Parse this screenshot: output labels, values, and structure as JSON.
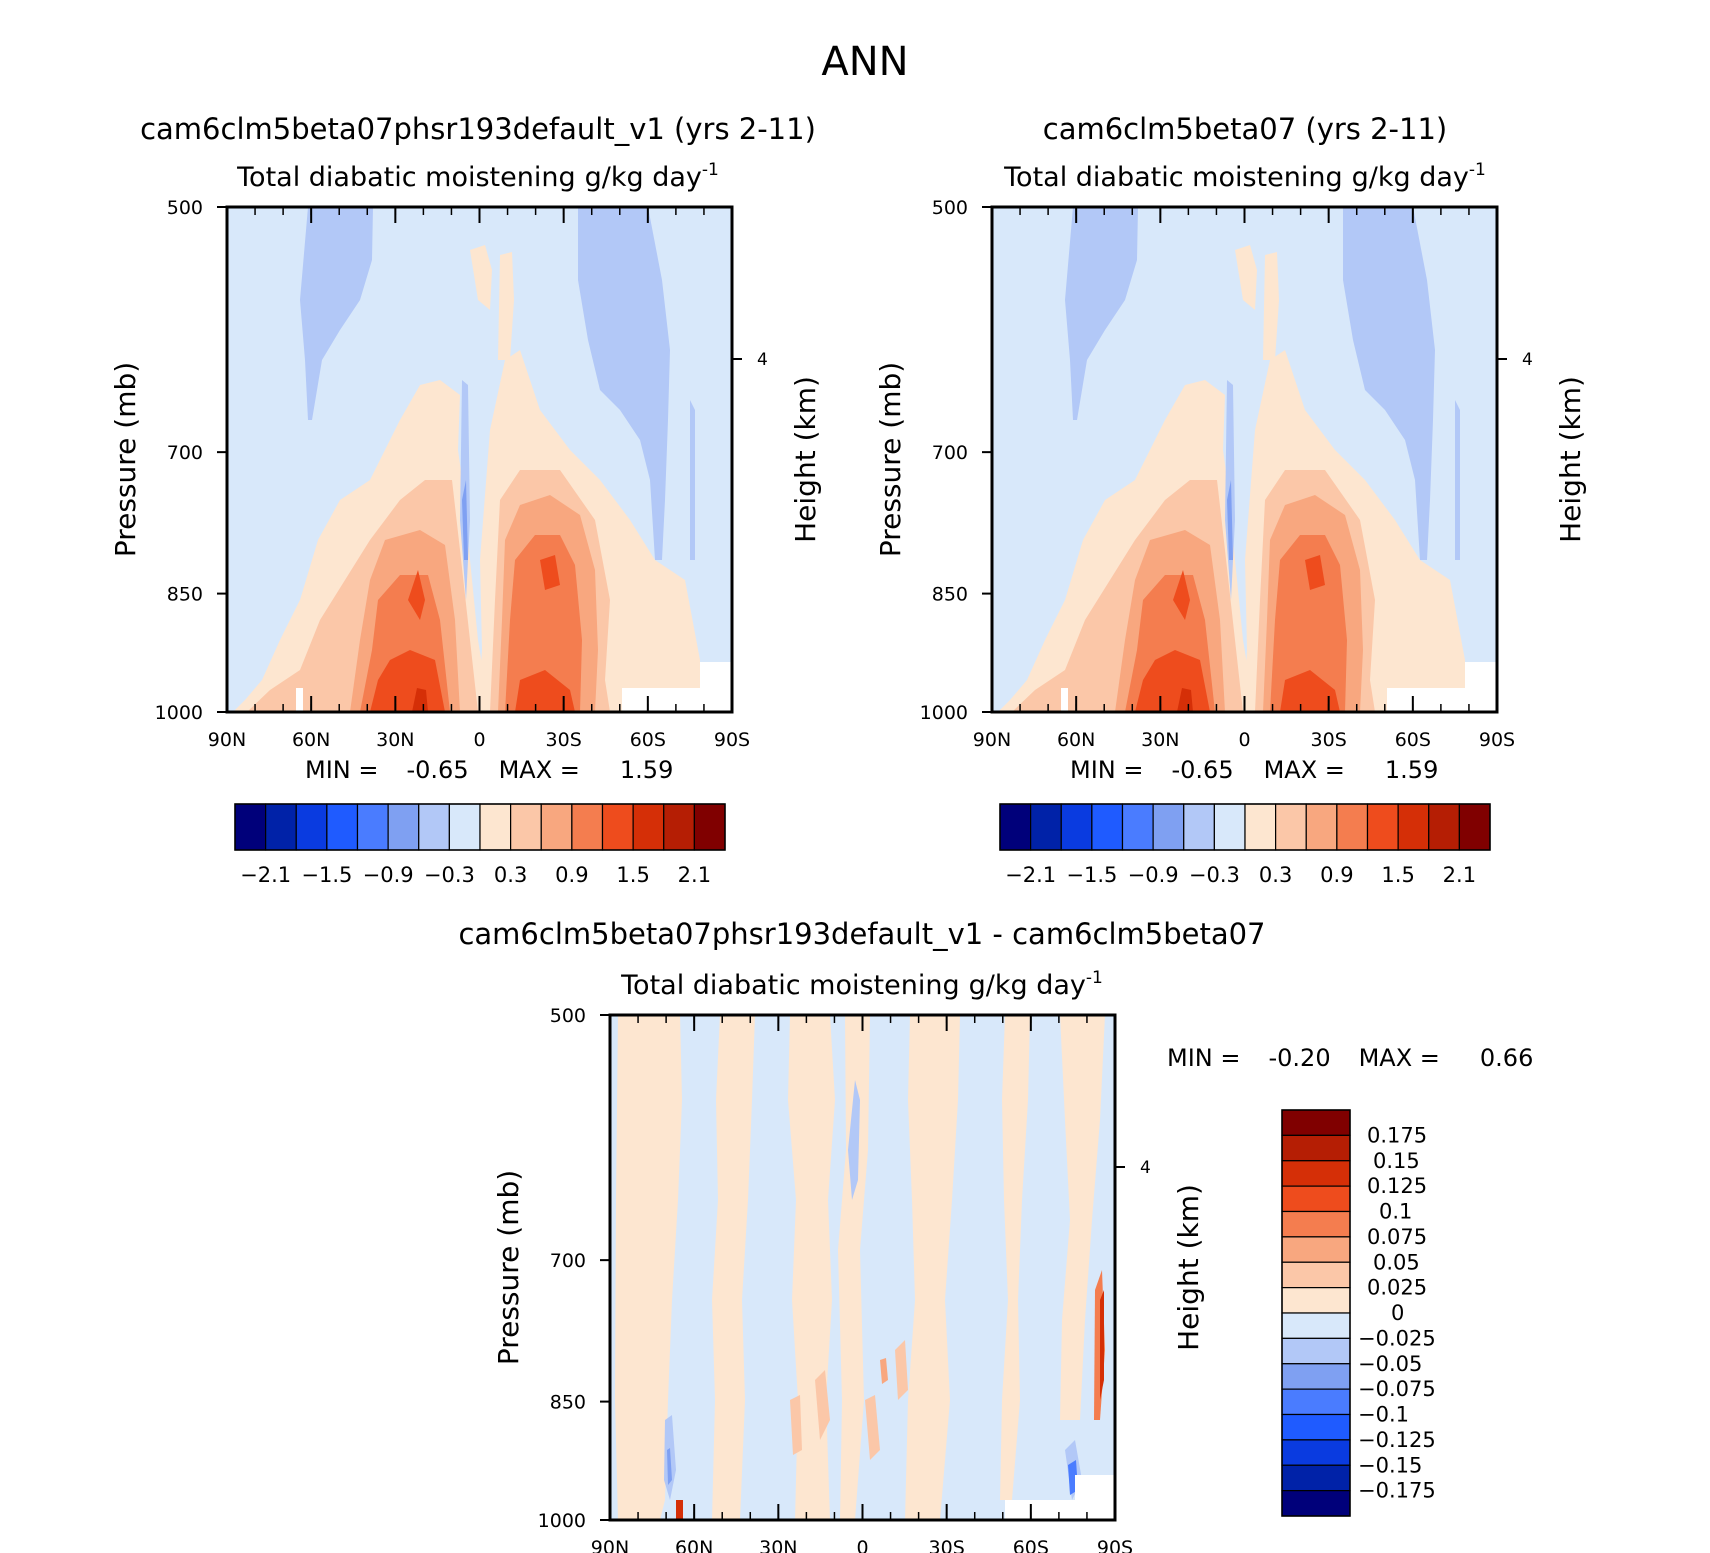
{
  "figure": {
    "title": "ANN",
    "colors": {
      "main_scale": [
        "#00007a",
        "#0022a8",
        "#0a3be0",
        "#1f5bff",
        "#4a7cff",
        "#7fa0f2",
        "#b2c8f7",
        "#d8e8fa",
        "#fde6d0",
        "#fbc7a8",
        "#f8a77f",
        "#f47d4f",
        "#ee4c1d",
        "#d52f07",
        "#b51e04",
        "#800000"
      ],
      "diff_scale": [
        "#00007a",
        "#0022a8",
        "#0a3be0",
        "#1f5bff",
        "#4a7cff",
        "#7fa0f2",
        "#b2c8f7",
        "#d8e8fa",
        "#fde6d0",
        "#fbc7a8",
        "#f8a77f",
        "#f47d4f",
        "#ee4c1d",
        "#d52f07",
        "#b51e04",
        "#800000"
      ]
    }
  },
  "chart_data": [
    {
      "type": "heatmap",
      "id": "panel-test",
      "title": "cam6clm5beta07phsr193default_v1 (yrs 2-11)",
      "subtitle": "Total diabatic moistening",
      "units": "g/kg day",
      "units_exp": "-1",
      "xlabel": "",
      "ylabel": "Pressure (mb)",
      "ylabel_right": "Height (km)",
      "x_ticks": [
        "90N",
        "60N",
        "30N",
        "0",
        "30S",
        "60S",
        "90S"
      ],
      "x_range": [
        90,
        -90
      ],
      "y_ticks": [
        "500",
        "700",
        "850",
        "1000"
      ],
      "y_range": [
        500,
        1000
      ],
      "right_ticks": [
        "4"
      ],
      "stats": {
        "min_label": "MIN =",
        "min": "-0.65",
        "max_label": "MAX =",
        "max": "1.59"
      },
      "levels": [
        -2.1,
        -1.8,
        -1.5,
        -1.2,
        -0.9,
        -0.6,
        -0.3,
        0,
        0.3,
        0.6,
        0.9,
        1.2,
        1.5,
        1.8,
        2.1
      ],
      "colorbar_labels": [
        "-2.1",
        "-1.5",
        "-0.9",
        "-0.3",
        "0.3",
        "0.9",
        "1.5",
        "2.1"
      ]
    },
    {
      "type": "heatmap",
      "id": "panel-ctrl",
      "title": "cam6clm5beta07 (yrs 2-11)",
      "subtitle": "Total diabatic moistening",
      "units": "g/kg day",
      "units_exp": "-1",
      "xlabel": "",
      "ylabel": "Pressure (mb)",
      "ylabel_right": "Height (km)",
      "x_ticks": [
        "90N",
        "60N",
        "30N",
        "0",
        "30S",
        "60S",
        "90S"
      ],
      "x_range": [
        90,
        -90
      ],
      "y_ticks": [
        "500",
        "700",
        "850",
        "1000"
      ],
      "y_range": [
        500,
        1000
      ],
      "right_ticks": [
        "4"
      ],
      "stats": {
        "min_label": "MIN =",
        "min": "-0.65",
        "max_label": "MAX =",
        "max": "1.59"
      },
      "levels": [
        -2.1,
        -1.8,
        -1.5,
        -1.2,
        -0.9,
        -0.6,
        -0.3,
        0,
        0.3,
        0.6,
        0.9,
        1.2,
        1.5,
        1.8,
        2.1
      ],
      "colorbar_labels": [
        "-2.1",
        "-1.5",
        "-0.9",
        "-0.3",
        "0.3",
        "0.9",
        "1.5",
        "2.1"
      ]
    },
    {
      "type": "heatmap",
      "id": "panel-diff",
      "title": "cam6clm5beta07phsr193default_v1 - cam6clm5beta07",
      "subtitle": "Total diabatic moistening",
      "units": "g/kg day",
      "units_exp": "-1",
      "xlabel": "",
      "ylabel": "Pressure (mb)",
      "ylabel_right": "Height (km)",
      "x_ticks": [
        "90N",
        "60N",
        "30N",
        "0",
        "30S",
        "60S",
        "90S"
      ],
      "x_range": [
        90,
        -90
      ],
      "y_ticks": [
        "500",
        "700",
        "850",
        "1000"
      ],
      "y_range": [
        500,
        1000
      ],
      "right_ticks": [
        "4"
      ],
      "stats": {
        "min_label": "MIN =",
        "min": "-0.20",
        "max_label": "MAX =",
        "max": "0.66"
      },
      "levels": [
        -0.175,
        -0.15,
        -0.125,
        -0.1,
        -0.075,
        -0.05,
        -0.025,
        0,
        0.025,
        0.05,
        0.075,
        0.1,
        0.125,
        0.15,
        0.175
      ],
      "colorbar_labels": [
        "0.175",
        "0.15",
        "0.125",
        "0.1",
        "0.075",
        "0.05",
        "0.025",
        "0",
        "-0.025",
        "-0.05",
        "-0.075",
        "-0.1",
        "-0.125",
        "-0.15",
        "-0.175"
      ]
    }
  ]
}
